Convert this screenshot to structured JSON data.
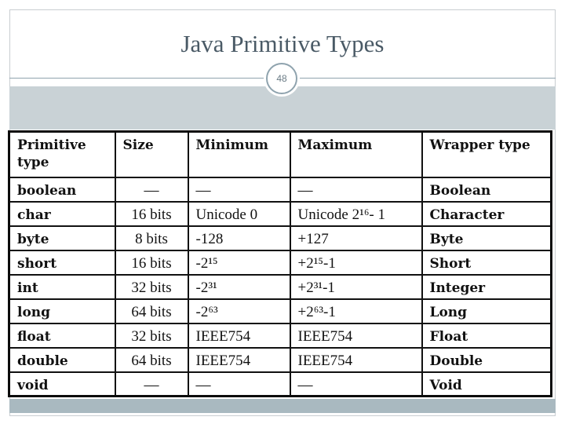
{
  "slide": {
    "title": "Java Primitive Types",
    "number": "48"
  },
  "table": {
    "headers": [
      "Primitive type",
      "Size",
      "Minimum",
      "Maximum",
      "Wrapper type"
    ],
    "rows": [
      {
        "type": "boolean",
        "size": "—",
        "min": "—",
        "max": "—",
        "wrapper": "Boolean"
      },
      {
        "type": "char",
        "size": "16 bits",
        "min": "Unicode 0",
        "max": "Unicode 2¹⁶- 1",
        "wrapper": "Character"
      },
      {
        "type": "byte",
        "size": "8 bits",
        "min": "-128",
        "max": "+127",
        "wrapper": "Byte"
      },
      {
        "type": "short",
        "size": "16 bits",
        "min": "-2¹⁵",
        "max": "+2¹⁵-1",
        "wrapper": "Short"
      },
      {
        "type": "int",
        "size": "32 bits",
        "min": "-2³¹",
        "max": "+2³¹-1",
        "wrapper": "Integer"
      },
      {
        "type": "long",
        "size": "64 bits",
        "min": "-2⁶³",
        "max": "+2⁶³-1",
        "wrapper": "Long"
      },
      {
        "type": "float",
        "size": "32 bits",
        "min": "IEEE754",
        "max": "IEEE754",
        "wrapper": "Float"
      },
      {
        "type": "double",
        "size": "64 bits",
        "min": "IEEE754",
        "max": "IEEE754",
        "wrapper": "Double"
      },
      {
        "type": "void",
        "size": "—",
        "min": "—",
        "max": "—",
        "wrapper": "Void"
      }
    ]
  }
}
